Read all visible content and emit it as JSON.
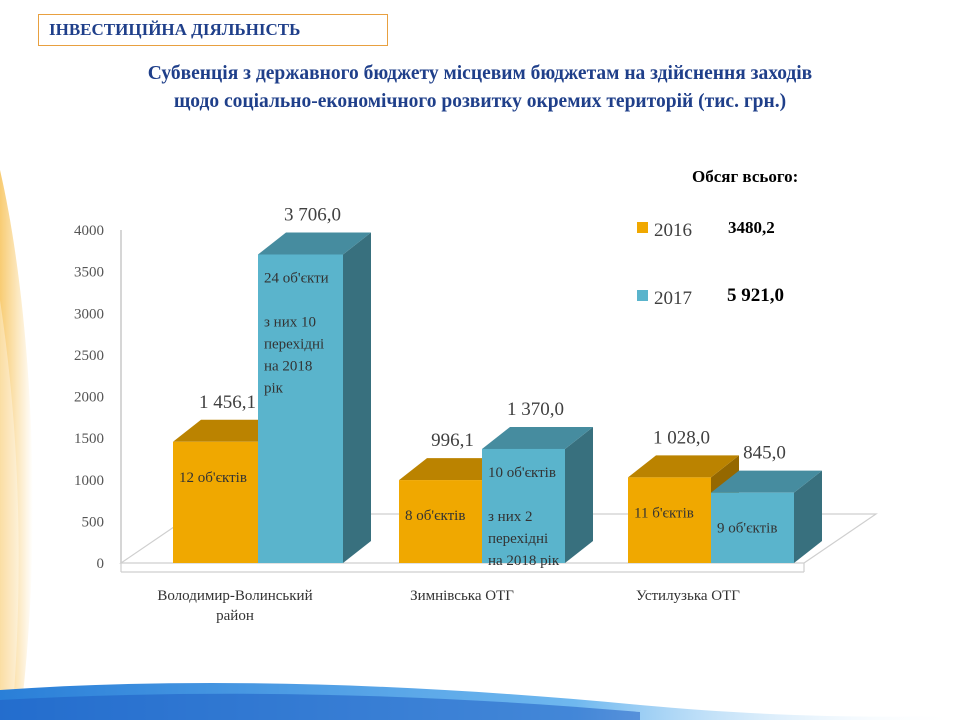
{
  "header": {
    "section_label": "ІНВЕСТИЦІЙНА ДІЯЛЬНІСТЬ",
    "title_line1": "Субвенція з державного бюджету місцевим бюджетам на здійснення заходів",
    "title_line2": "щодо соціально-економічного розвитку окремих територій (тис. грн.)"
  },
  "colors": {
    "accent_title": "#1f3f8a",
    "series_2016": "#f0a800",
    "series_2017": "#5ab4cc"
  },
  "chart_data": {
    "type": "bar",
    "style": "3d-clustered-column",
    "categories": [
      "Володимир-Волинський район",
      "Зимнівська ОТГ",
      "Устилузька ОТГ"
    ],
    "series": [
      {
        "name": "2016",
        "values": [
          1456.1,
          996.1,
          1028.0
        ],
        "value_labels": [
          "1 456,1",
          "996,1",
          "1 028,0"
        ],
        "bar_notes": [
          [
            "12 об'єктів"
          ],
          [
            "8 об'єктів"
          ],
          [
            "11 б'єктів"
          ]
        ]
      },
      {
        "name": "2017",
        "values": [
          3706.0,
          1370.0,
          845.0
        ],
        "value_labels": [
          "3 706,0",
          "1 370,0",
          "845,0"
        ],
        "bar_notes": [
          [
            "24 об'єкти",
            "",
            "з них 10",
            "перехідні",
            "на 2018",
            "рік"
          ],
          [
            "10 об'єктів",
            "",
            "з них 2",
            "перехідні",
            "на 2018 рік"
          ],
          [
            "9 об'єктів"
          ]
        ]
      }
    ],
    "yticks": [
      0,
      500,
      1000,
      1500,
      2000,
      2500,
      3000,
      3500,
      4000
    ],
    "ylim": [
      0,
      4000
    ],
    "grid": false,
    "legend": {
      "title": "Обсяг всього:",
      "placement": "top-right",
      "items": [
        {
          "name": "2016",
          "total": "3480,2"
        },
        {
          "name": "2017",
          "total": "5 921,0"
        }
      ]
    }
  }
}
